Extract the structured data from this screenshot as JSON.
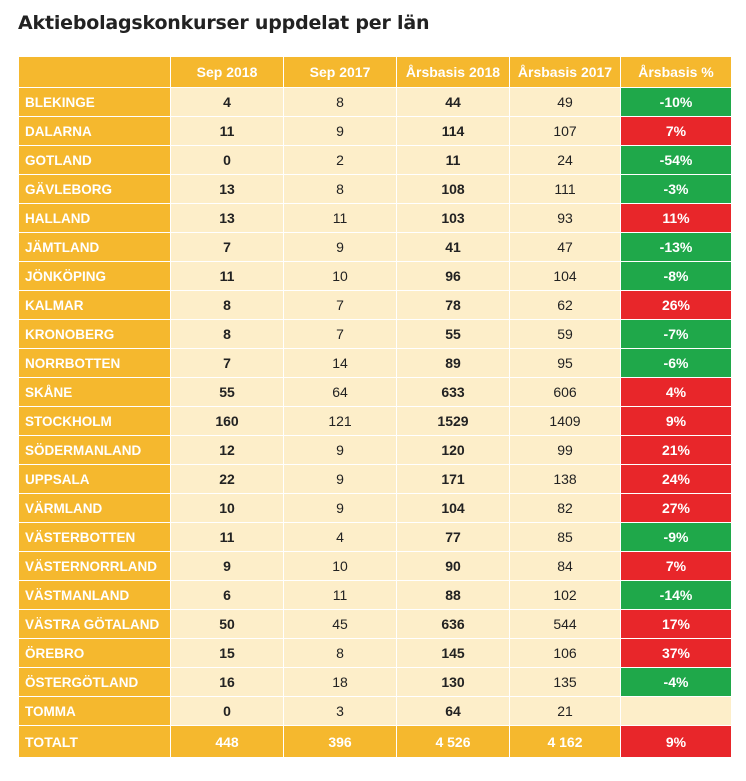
{
  "title": "Aktiebolagskonkurser uppdelat per län",
  "colors": {
    "header": "#f5b82e",
    "cell": "#fdeec9",
    "decrease": "#1fa84a",
    "increase": "#e8262a"
  },
  "headers": [
    "",
    "Sep 2018",
    "Sep 2017",
    "Årsbasis 2018",
    "Årsbasis 2017",
    "Årsbasis %"
  ],
  "rows": [
    {
      "name": "BLEKINGE",
      "sep2018": "4",
      "sep2017": "8",
      "ar2018": "44",
      "ar2017": "49",
      "pct": "-10%",
      "trend": "down"
    },
    {
      "name": "DALARNA",
      "sep2018": "11",
      "sep2017": "9",
      "ar2018": "114",
      "ar2017": "107",
      "pct": "7%",
      "trend": "up"
    },
    {
      "name": "GOTLAND",
      "sep2018": "0",
      "sep2017": "2",
      "ar2018": "11",
      "ar2017": "24",
      "pct": "-54%",
      "trend": "down"
    },
    {
      "name": "GÄVLEBORG",
      "sep2018": "13",
      "sep2017": "8",
      "ar2018": "108",
      "ar2017": "111",
      "pct": "-3%",
      "trend": "down"
    },
    {
      "name": "HALLAND",
      "sep2018": "13",
      "sep2017": "11",
      "ar2018": "103",
      "ar2017": "93",
      "pct": "11%",
      "trend": "up"
    },
    {
      "name": "JÄMTLAND",
      "sep2018": "7",
      "sep2017": "9",
      "ar2018": "41",
      "ar2017": "47",
      "pct": "-13%",
      "trend": "down"
    },
    {
      "name": "JÖNKÖPING",
      "sep2018": "11",
      "sep2017": "10",
      "ar2018": "96",
      "ar2017": "104",
      "pct": "-8%",
      "trend": "down"
    },
    {
      "name": "KALMAR",
      "sep2018": "8",
      "sep2017": "7",
      "ar2018": "78",
      "ar2017": "62",
      "pct": "26%",
      "trend": "up"
    },
    {
      "name": "KRONOBERG",
      "sep2018": "8",
      "sep2017": "7",
      "ar2018": "55",
      "ar2017": "59",
      "pct": "-7%",
      "trend": "down"
    },
    {
      "name": "NORRBOTTEN",
      "sep2018": "7",
      "sep2017": "14",
      "ar2018": "89",
      "ar2017": "95",
      "pct": "-6%",
      "trend": "down"
    },
    {
      "name": "SKÅNE",
      "sep2018": "55",
      "sep2017": "64",
      "ar2018": "633",
      "ar2017": "606",
      "pct": "4%",
      "trend": "up"
    },
    {
      "name": "STOCKHOLM",
      "sep2018": "160",
      "sep2017": "121",
      "ar2018": "1529",
      "ar2017": "1409",
      "pct": "9%",
      "trend": "up"
    },
    {
      "name": "SÖDERMANLAND",
      "sep2018": "12",
      "sep2017": "9",
      "ar2018": "120",
      "ar2017": "99",
      "pct": "21%",
      "trend": "up"
    },
    {
      "name": "UPPSALA",
      "sep2018": "22",
      "sep2017": "9",
      "ar2018": "171",
      "ar2017": "138",
      "pct": "24%",
      "trend": "up"
    },
    {
      "name": "VÄRMLAND",
      "sep2018": "10",
      "sep2017": "9",
      "ar2018": "104",
      "ar2017": "82",
      "pct": "27%",
      "trend": "up"
    },
    {
      "name": "VÄSTERBOTTEN",
      "sep2018": "11",
      "sep2017": "4",
      "ar2018": "77",
      "ar2017": "85",
      "pct": "-9%",
      "trend": "down"
    },
    {
      "name": "VÄSTERNORRLAND",
      "sep2018": "9",
      "sep2017": "10",
      "ar2018": "90",
      "ar2017": "84",
      "pct": "7%",
      "trend": "up"
    },
    {
      "name": "VÄSTMANLAND",
      "sep2018": "6",
      "sep2017": "11",
      "ar2018": "88",
      "ar2017": "102",
      "pct": "-14%",
      "trend": "down"
    },
    {
      "name": "VÄSTRA GÖTALAND",
      "sep2018": "50",
      "sep2017": "45",
      "ar2018": "636",
      "ar2017": "544",
      "pct": "17%",
      "trend": "up"
    },
    {
      "name": "ÖREBRO",
      "sep2018": "15",
      "sep2017": "8",
      "ar2018": "145",
      "ar2017": "106",
      "pct": "37%",
      "trend": "up"
    },
    {
      "name": "ÖSTERGÖTLAND",
      "sep2018": "16",
      "sep2017": "18",
      "ar2018": "130",
      "ar2017": "135",
      "pct": "-4%",
      "trend": "down"
    },
    {
      "name": "TOMMA",
      "sep2018": "0",
      "sep2017": "3",
      "ar2018": "64",
      "ar2017": "21",
      "pct": "",
      "trend": "none"
    }
  ],
  "total": {
    "name": "TOTALT",
    "sep2018": "448",
    "sep2017": "396",
    "ar2018": "4 526",
    "ar2017": "4 162",
    "pct": "9%"
  }
}
